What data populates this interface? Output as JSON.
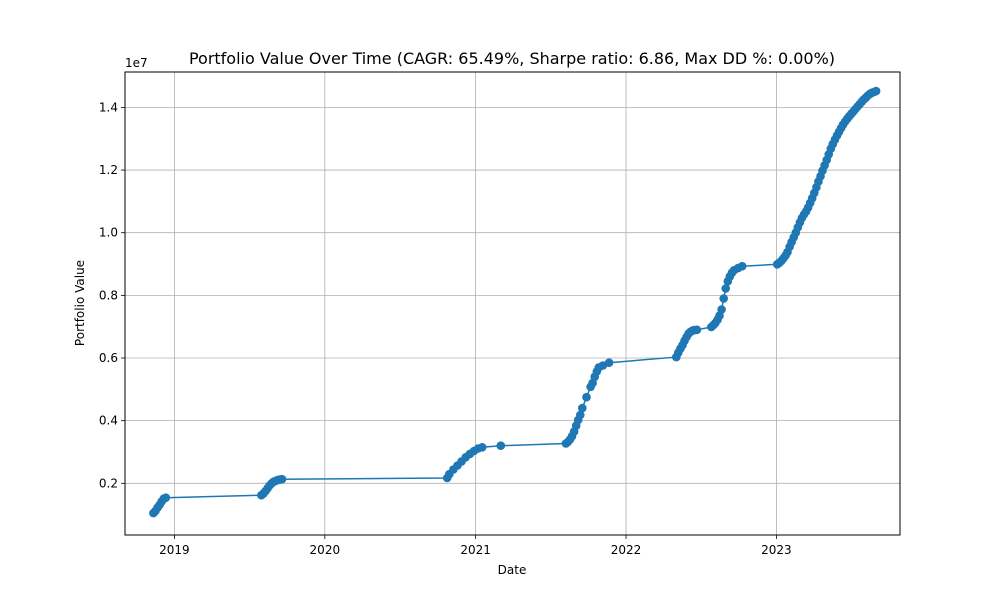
{
  "chart_data": {
    "type": "line",
    "title": "Portfolio Value Over Time (CAGR: 65.49%, Sharpe ratio: 6.86, Max DD %: 0.00%)",
    "xlabel": "Date",
    "ylabel": "Portfolio Value",
    "y_offset_label": "1e7",
    "x_tick_labels": [
      "2019",
      "2020",
      "2021",
      "2022",
      "2023"
    ],
    "y_tick_labels": [
      "0.2",
      "0.4",
      "0.6",
      "0.8",
      "1.0",
      "1.2",
      "1.4"
    ],
    "y_ticks": [
      0.2,
      0.4,
      0.6,
      0.8,
      1.0,
      1.2,
      1.4
    ],
    "xlim": [
      "2018-09-03",
      "2023-10-28"
    ],
    "ylim": [
      0.035,
      1.513
    ],
    "grid": true,
    "marker": "circle",
    "color": "#1f77b4",
    "series": [
      {
        "x": [
          "2018-11-11",
          "2018-11-16",
          "2018-11-21",
          "2018-11-26",
          "2018-12-01",
          "2018-12-06",
          "2018-12-11",
          "2019-07-31",
          "2019-08-05",
          "2019-08-10",
          "2019-08-15",
          "2019-08-20",
          "2019-08-25",
          "2019-08-30",
          "2019-09-04",
          "2019-09-09",
          "2019-09-14",
          "2019-09-19",
          "2020-10-24",
          "2020-10-29",
          "2020-11-08",
          "2020-11-18",
          "2020-11-28",
          "2020-12-08",
          "2020-12-18",
          "2020-12-28",
          "2021-01-07",
          "2021-01-17",
          "2021-03-03",
          "2021-08-08",
          "2021-08-13",
          "2021-08-18",
          "2021-08-23",
          "2021-08-28",
          "2021-09-02",
          "2021-09-07",
          "2021-09-12",
          "2021-09-17",
          "2021-09-27",
          "2021-10-07",
          "2021-10-12",
          "2021-10-17",
          "2021-10-22",
          "2021-10-27",
          "2021-11-06",
          "2021-11-21",
          "2022-05-03",
          "2022-05-08",
          "2022-05-13",
          "2022-05-18",
          "2022-05-23",
          "2022-05-28",
          "2022-06-02",
          "2022-06-07",
          "2022-06-12",
          "2022-06-17",
          "2022-06-22",
          "2022-07-27",
          "2022-08-01",
          "2022-08-06",
          "2022-08-11",
          "2022-08-16",
          "2022-08-21",
          "2022-08-26",
          "2022-08-31",
          "2022-09-05",
          "2022-09-10",
          "2022-09-15",
          "2022-09-20",
          "2022-09-30",
          "2022-10-10",
          "2023-01-03",
          "2023-01-08",
          "2023-01-13",
          "2023-01-18",
          "2023-01-23",
          "2023-01-28",
          "2023-02-02",
          "2023-02-07",
          "2023-02-12",
          "2023-02-17",
          "2023-02-22",
          "2023-02-27",
          "2023-03-04",
          "2023-03-09",
          "2023-03-14",
          "2023-03-19",
          "2023-03-24",
          "2023-03-29",
          "2023-04-03",
          "2023-04-08",
          "2023-04-13",
          "2023-04-18",
          "2023-04-23",
          "2023-04-28",
          "2023-05-03",
          "2023-05-08",
          "2023-05-13",
          "2023-05-18",
          "2023-05-23",
          "2023-05-28",
          "2023-06-02",
          "2023-06-07",
          "2023-06-12",
          "2023-06-17",
          "2023-06-22",
          "2023-06-27",
          "2023-07-02",
          "2023-07-07",
          "2023-07-12",
          "2023-07-17",
          "2023-07-22",
          "2023-07-27",
          "2023-08-01",
          "2023-08-06",
          "2023-08-11",
          "2023-08-16",
          "2023-08-21",
          "2023-08-26",
          "2023-08-31"
        ],
        "y": [
          0.105,
          0.112,
          0.122,
          0.131,
          0.142,
          0.151,
          0.154,
          0.162,
          0.167,
          0.175,
          0.184,
          0.193,
          0.2,
          0.205,
          0.208,
          0.211,
          0.212,
          0.213,
          0.217,
          0.229,
          0.244,
          0.257,
          0.27,
          0.283,
          0.294,
          0.303,
          0.311,
          0.315,
          0.32,
          0.327,
          0.332,
          0.34,
          0.35,
          0.365,
          0.384,
          0.402,
          0.418,
          0.44,
          0.475,
          0.508,
          0.52,
          0.54,
          0.557,
          0.57,
          0.576,
          0.585,
          0.603,
          0.617,
          0.63,
          0.641,
          0.655,
          0.667,
          0.678,
          0.684,
          0.688,
          0.689,
          0.69,
          0.699,
          0.705,
          0.712,
          0.722,
          0.735,
          0.755,
          0.79,
          0.822,
          0.845,
          0.86,
          0.872,
          0.88,
          0.887,
          0.893,
          0.899,
          0.904,
          0.91,
          0.918,
          0.927,
          0.938,
          0.955,
          0.97,
          0.985,
          1.0,
          1.017,
          1.033,
          1.047,
          1.058,
          1.068,
          1.08,
          1.095,
          1.11,
          1.127,
          1.145,
          1.163,
          1.18,
          1.198,
          1.215,
          1.232,
          1.25,
          1.268,
          1.283,
          1.297,
          1.31,
          1.322,
          1.334,
          1.345,
          1.355,
          1.364,
          1.372,
          1.38,
          1.387,
          1.395,
          1.403,
          1.41,
          1.418,
          1.425,
          1.431,
          1.438,
          1.443,
          1.447,
          1.449,
          1.452
        ]
      }
    ]
  }
}
